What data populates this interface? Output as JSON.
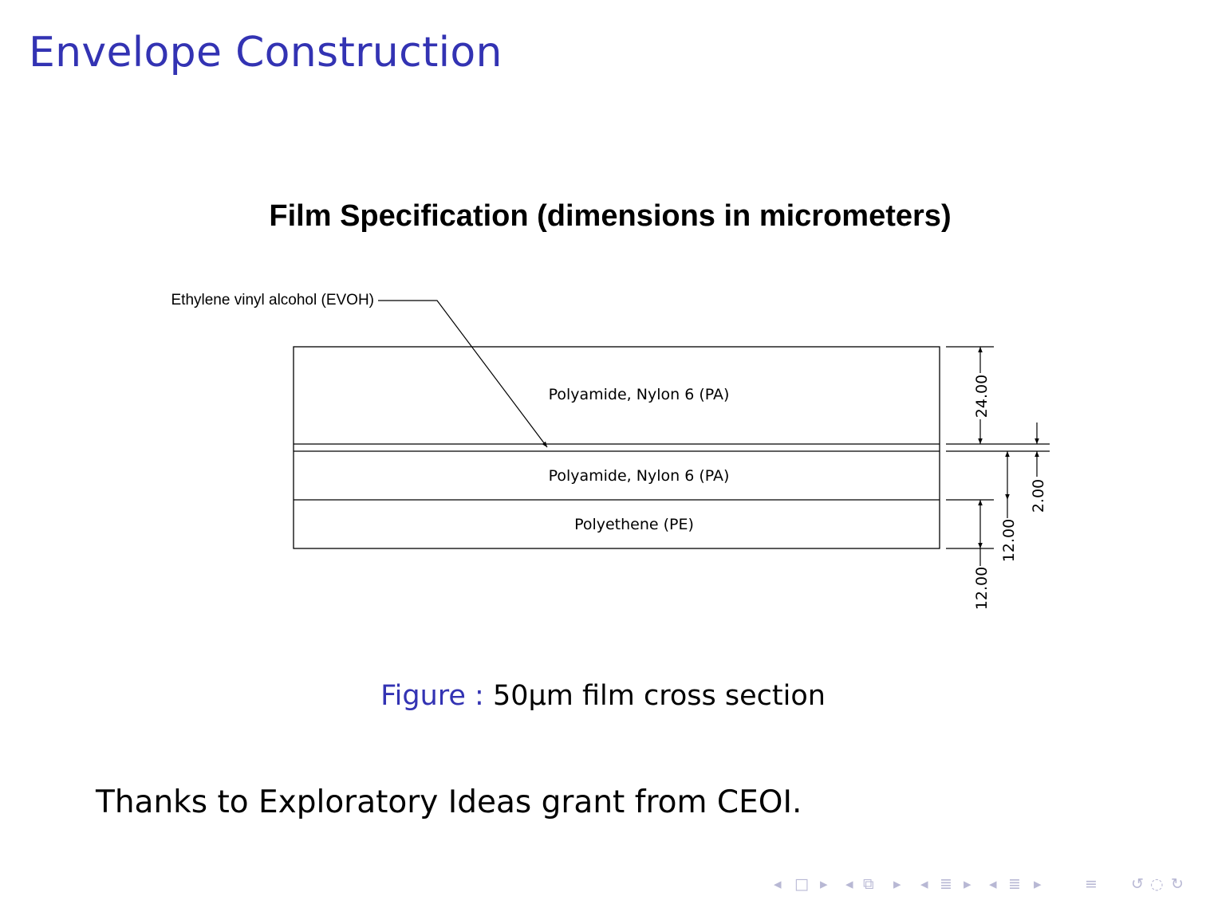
{
  "slide": {
    "title": "Envelope Construction"
  },
  "figure": {
    "title": "Film Specification (dimensions in micrometers)",
    "evoh_label": "Ethylene vinyl alcohol (EVOH)",
    "layers": [
      {
        "name": "Polyamide, Nylon 6 (PA)",
        "thickness": 24.0
      },
      {
        "name": "",
        "thickness": 2.0
      },
      {
        "name": "Polyamide, Nylon 6 (PA)",
        "thickness": 12.0
      },
      {
        "name": "Polyethene (PE)",
        "thickness": 12.0
      }
    ],
    "dimensions": {
      "top_pa": "24.00",
      "evoh": "2.00",
      "mid_pa": "12.00",
      "pe": "12.00"
    },
    "caption_label": "Figure :",
    "caption_text": "50μm film cross section"
  },
  "acknowledgement": "Thanks to Exploratory Ideas grant from CEOI.",
  "navigation": {
    "colors": {
      "nav": "#b8b8d4",
      "title": "#3333b3"
    },
    "icons": [
      "arrow-left",
      "frame-box",
      "arrow-right",
      "arrow-left",
      "subsection-box",
      "arrow-right",
      "arrow-left",
      "section-lines",
      "arrow-right",
      "arrow-left",
      "section-lines",
      "arrow-right",
      "align-lines",
      "undo",
      "find",
      "redo"
    ]
  }
}
